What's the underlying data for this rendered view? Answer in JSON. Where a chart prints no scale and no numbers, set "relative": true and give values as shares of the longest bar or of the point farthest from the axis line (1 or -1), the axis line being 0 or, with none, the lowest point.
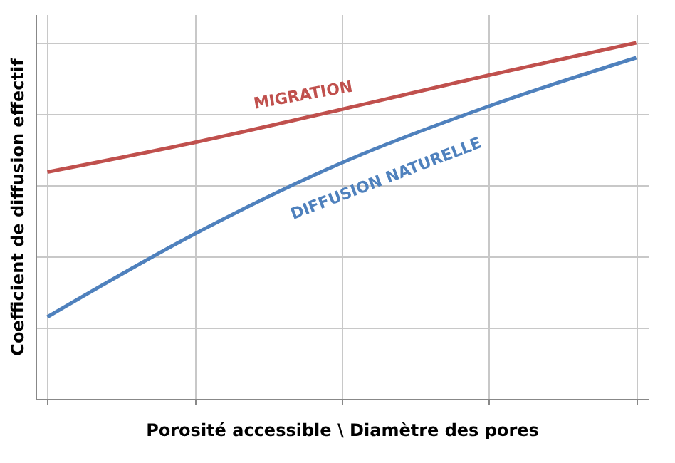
{
  "chart_data": {
    "type": "line",
    "relative": true,
    "xlabel": "Porosité accessible \\ Diamètre des pores",
    "ylabel": "Coefficient de diffusion effectif",
    "categories": [
      null,
      null,
      null,
      null,
      null
    ],
    "series": [
      {
        "name": "MIGRATION",
        "color": "#c0504d",
        "values": [
          0.637,
          0.72,
          0.813,
          0.909,
          1
        ]
      },
      {
        "name": "DIFFUSION NATURELLE",
        "color": "#4f81bd",
        "values": [
          0.23,
          0.463,
          0.663,
          0.822,
          0.958
        ]
      }
    ],
    "grid": true
  }
}
